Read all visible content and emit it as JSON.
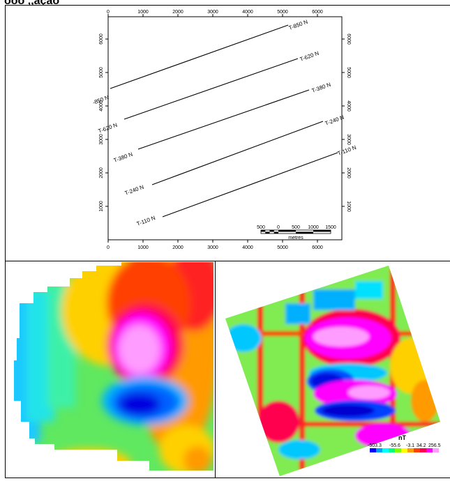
{
  "page": {
    "title": "ooo ,,ação"
  },
  "line_map": {
    "top_axis_ticks": [
      "0",
      "1000",
      "2000",
      "3000",
      "4000",
      "5000",
      "6000"
    ],
    "bottom_axis_ticks": [
      "0",
      "1000",
      "2000",
      "3000",
      "4000",
      "5000",
      "6000"
    ],
    "left_axis_ticks": [
      "6000",
      "5000",
      "4000",
      "3000",
      "2000",
      "1000"
    ],
    "right_axis_ticks": [
      "6000",
      "5000",
      "4000",
      "3000",
      "2000",
      "1000"
    ],
    "lines": [
      {
        "start_label": "-850 N",
        "end_label": "T-850 N"
      },
      {
        "start_label": "T-620 N",
        "end_label": "T-620 N"
      },
      {
        "start_label": "T-380 N",
        "end_label": "T-380 N"
      },
      {
        "start_label": "T-240 N",
        "end_label": "T-240 N"
      },
      {
        "start_label": "T-110 N",
        "end_label": "T-110 N"
      }
    ],
    "scale_bar": {
      "labels": [
        "500",
        "0",
        "500",
        "1000",
        "1500"
      ],
      "unit": "metres"
    }
  },
  "left_map": {},
  "right_map": {
    "legend": {
      "unit": "nT",
      "values": [
        "-503.3",
        "-55.6",
        "-3.1",
        "34.2",
        "256.5"
      ],
      "colors": [
        "#0000ff",
        "#00a0ff",
        "#00ffff",
        "#00ff80",
        "#80ff00",
        "#ffff00",
        "#ffa000",
        "#ff4000",
        "#ff0050",
        "#ff00ff",
        "#ff9cff"
      ]
    }
  }
}
